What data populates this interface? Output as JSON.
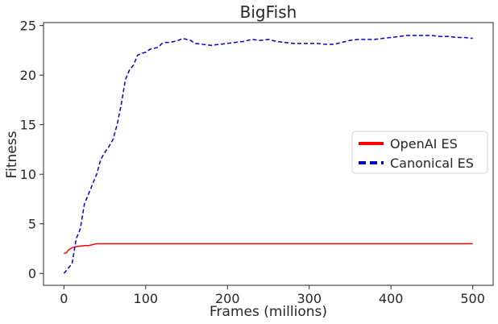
{
  "chart_data": {
    "type": "line",
    "title": "BigFish",
    "xlabel": "Frames (millions)",
    "ylabel": "Fitness",
    "xlim": [
      -25,
      525
    ],
    "ylim": [
      -1.2,
      25.3
    ],
    "xticks": [
      0,
      100,
      200,
      300,
      400,
      500
    ],
    "yticks": [
      0,
      5,
      10,
      15,
      20,
      25
    ],
    "grid": false,
    "legend_position": "center-right",
    "series": [
      {
        "name": "OpenAI ES",
        "color": "#ff0000",
        "line_style": "solid",
        "x": [
          0,
          3,
          6,
          10,
          15,
          20,
          25,
          30,
          35,
          40,
          60,
          100,
          150,
          200,
          250,
          300,
          350,
          400,
          450,
          500
        ],
        "y": [
          2.0,
          2.1,
          2.4,
          2.6,
          2.7,
          2.75,
          2.8,
          2.8,
          2.9,
          3.0,
          3.0,
          3.0,
          3.0,
          3.0,
          3.0,
          3.0,
          3.0,
          3.0,
          3.0,
          3.0
        ]
      },
      {
        "name": "Canonical ES",
        "color": "#0000cc",
        "line_style": "dashed",
        "x": [
          0,
          5,
          10,
          15,
          20,
          25,
          30,
          35,
          40,
          45,
          50,
          55,
          60,
          65,
          70,
          75,
          80,
          85,
          90,
          95,
          100,
          105,
          110,
          115,
          120,
          125,
          130,
          135,
          140,
          145,
          150,
          155,
          160,
          170,
          180,
          190,
          200,
          210,
          220,
          230,
          240,
          250,
          260,
          270,
          280,
          290,
          300,
          310,
          320,
          330,
          340,
          350,
          360,
          370,
          380,
          390,
          400,
          410,
          420,
          430,
          440,
          450,
          460,
          470,
          480,
          490,
          500
        ],
        "y": [
          0.0,
          0.5,
          1.0,
          3.5,
          4.5,
          7.0,
          8.0,
          9.0,
          10.0,
          11.5,
          12.2,
          12.8,
          13.5,
          15.0,
          17.0,
          19.5,
          20.5,
          21.0,
          22.0,
          22.2,
          22.3,
          22.6,
          22.7,
          22.8,
          23.2,
          23.3,
          23.3,
          23.4,
          23.5,
          23.7,
          23.6,
          23.5,
          23.2,
          23.1,
          23.0,
          23.1,
          23.2,
          23.3,
          23.4,
          23.6,
          23.5,
          23.6,
          23.4,
          23.3,
          23.2,
          23.2,
          23.2,
          23.2,
          23.1,
          23.1,
          23.3,
          23.5,
          23.6,
          23.6,
          23.6,
          23.7,
          23.8,
          23.9,
          24.0,
          24.0,
          24.0,
          24.0,
          23.9,
          23.9,
          23.8,
          23.8,
          23.7
        ]
      }
    ]
  }
}
